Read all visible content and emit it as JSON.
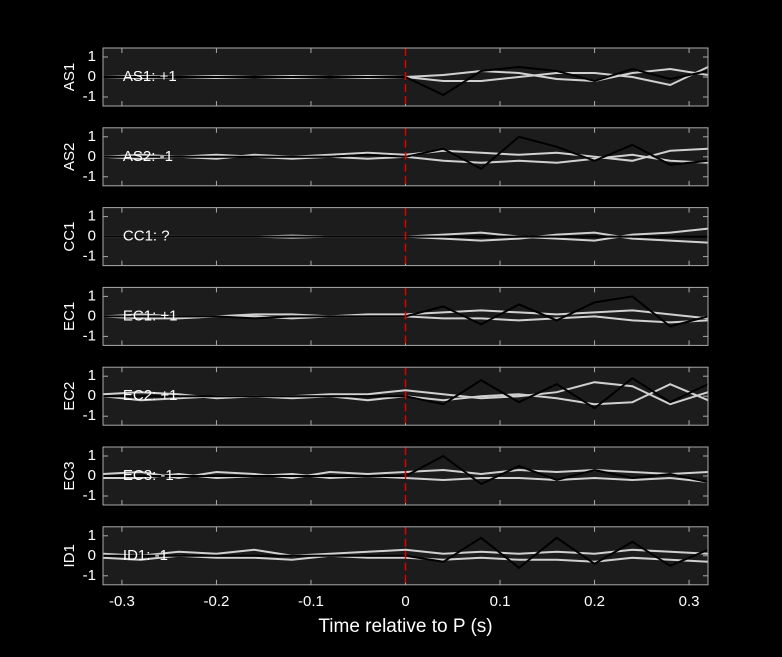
{
  "chart_data": [
    {
      "type": "line",
      "ylabel": "AS1",
      "annotation": "AS1: +1",
      "annotation_color": "#cc0000",
      "x": [
        -0.32,
        -0.28,
        -0.24,
        -0.2,
        -0.16,
        -0.12,
        -0.08,
        -0.04,
        0,
        0.04,
        0.08,
        0.12,
        0.16,
        0.2,
        0.24,
        0.28,
        0.32
      ],
      "series": [
        {
          "color": "#d0d0d0",
          "values": [
            0,
            0.05,
            0,
            -0.05,
            0,
            0.05,
            0,
            -0.05,
            0,
            0.1,
            0.3,
            0.2,
            -0.1,
            -0.2,
            0.2,
            0.4,
            0.1
          ]
        },
        {
          "color": "#d0d0d0",
          "values": [
            0,
            -0.05,
            0,
            0.05,
            0,
            -0.05,
            0,
            0.05,
            0,
            -0.2,
            -0.2,
            0,
            0.2,
            0.2,
            0,
            -0.4,
            0.5
          ]
        },
        {
          "color": "#000000",
          "values": [
            0,
            0,
            0,
            0,
            0,
            0,
            0,
            0,
            0,
            -0.9,
            0.3,
            0.5,
            0.3,
            -0.2,
            0.4,
            -0.1,
            0.3
          ]
        }
      ],
      "xlim": [
        -0.32,
        0.32
      ],
      "xticks": [
        -0.3,
        -0.2,
        -0.1,
        0,
        0.1,
        0.2,
        0.3
      ],
      "ylim": [
        -1.45,
        1.45
      ],
      "yticks": [
        -1,
        0,
        1
      ],
      "vline": 0,
      "vline_color": "#dd0000"
    },
    {
      "type": "line",
      "ylabel": "AS2",
      "annotation": "AS2: -1",
      "annotation_color": "#1a1acc",
      "x": [
        -0.32,
        -0.28,
        -0.24,
        -0.2,
        -0.16,
        -0.12,
        -0.08,
        -0.04,
        0,
        0.04,
        0.08,
        0.12,
        0.16,
        0.2,
        0.24,
        0.28,
        0.32
      ],
      "series": [
        {
          "color": "#d0d0d0",
          "values": [
            0,
            0.1,
            0,
            -0.1,
            0.1,
            0,
            0.1,
            0.2,
            0.1,
            0.3,
            0.2,
            0.1,
            0.2,
            0,
            -0.2,
            0.3,
            0.4
          ]
        },
        {
          "color": "#d0d0d0",
          "values": [
            0,
            -0.1,
            0,
            0.1,
            0,
            -0.1,
            0,
            -0.1,
            0,
            -0.2,
            -0.3,
            -0.2,
            -0.3,
            -0.1,
            0.1,
            -0.2,
            -0.3
          ]
        },
        {
          "color": "#000000",
          "values": [
            0,
            0,
            0,
            0,
            0,
            0,
            0,
            0.1,
            0,
            0.4,
            -0.6,
            1,
            0.5,
            -0.2,
            0.6,
            -0.4,
            -0.2
          ]
        }
      ],
      "xlim": [
        -0.32,
        0.32
      ],
      "xticks": [
        -0.3,
        -0.2,
        -0.1,
        0,
        0.1,
        0.2,
        0.3
      ],
      "ylim": [
        -1.45,
        1.45
      ],
      "yticks": [
        -1,
        0,
        1
      ],
      "vline": 0,
      "vline_color": "#dd0000"
    },
    {
      "type": "line",
      "ylabel": "CC1",
      "annotation": "CC1: ?",
      "annotation_color": "#888888",
      "x": [
        -0.32,
        -0.28,
        -0.24,
        -0.2,
        -0.16,
        -0.12,
        -0.08,
        -0.04,
        0,
        0.04,
        0.08,
        0.12,
        0.16,
        0.2,
        0.24,
        0.28,
        0.32
      ],
      "series": [
        {
          "color": "#d0d0d0",
          "values": [
            0,
            0,
            0,
            0,
            0,
            0.05,
            0,
            0,
            0,
            0.1,
            0.2,
            0,
            -0.1,
            -0.2,
            0.1,
            0.2,
            0.4
          ]
        },
        {
          "color": "#d0d0d0",
          "values": [
            0,
            0,
            0,
            0,
            0,
            -0.05,
            0,
            0,
            0,
            -0.1,
            -0.2,
            -0.1,
            0.1,
            0.2,
            -0.1,
            -0.2,
            -0.3
          ]
        },
        {
          "color": "#000000",
          "values": [
            0,
            0,
            0,
            0,
            0,
            0,
            0,
            0,
            0,
            0,
            0,
            0,
            0,
            0,
            0,
            0,
            0
          ]
        }
      ],
      "xlim": [
        -0.32,
        0.32
      ],
      "xticks": [
        -0.3,
        -0.2,
        -0.1,
        0,
        0.1,
        0.2,
        0.3
      ],
      "ylim": [
        -1.45,
        1.45
      ],
      "yticks": [
        -1,
        0,
        1
      ],
      "vline": 0,
      "vline_color": "#dd0000"
    },
    {
      "type": "line",
      "ylabel": "EC1",
      "annotation": "EC1: +1",
      "annotation_color": "#cc0000",
      "x": [
        -0.32,
        -0.28,
        -0.24,
        -0.2,
        -0.16,
        -0.12,
        -0.08,
        -0.04,
        0,
        0.04,
        0.08,
        0.12,
        0.16,
        0.2,
        0.24,
        0.28,
        0.32
      ],
      "series": [
        {
          "color": "#d0d0d0",
          "values": [
            0,
            0.1,
            0,
            0,
            0.1,
            0.1,
            0,
            0.1,
            0.1,
            0.2,
            0.3,
            0.2,
            0.1,
            0.2,
            0.3,
            0.1,
            -0.1
          ]
        },
        {
          "color": "#d0d0d0",
          "values": [
            0,
            -0.1,
            -0.1,
            0,
            0,
            -0.1,
            0,
            0,
            0,
            -0.1,
            -0.1,
            -0.2,
            -0.1,
            0,
            -0.2,
            -0.3,
            -0.2
          ]
        },
        {
          "color": "#000000",
          "values": [
            0,
            0,
            0,
            0,
            -0.1,
            0,
            0,
            0,
            0,
            0.5,
            -0.4,
            0.6,
            -0.2,
            0.7,
            1,
            -0.5,
            0
          ]
        }
      ],
      "xlim": [
        -0.32,
        0.32
      ],
      "xticks": [
        -0.3,
        -0.2,
        -0.1,
        0,
        0.1,
        0.2,
        0.3
      ],
      "ylim": [
        -1.45,
        1.45
      ],
      "yticks": [
        -1,
        0,
        1
      ],
      "vline": 0,
      "vline_color": "#dd0000"
    },
    {
      "type": "line",
      "ylabel": "EC2",
      "annotation": "EC2: +1",
      "annotation_color": "#cc0000",
      "x": [
        -0.32,
        -0.28,
        -0.24,
        -0.2,
        -0.16,
        -0.12,
        -0.08,
        -0.04,
        0,
        0.04,
        0.08,
        0.12,
        0.16,
        0.2,
        0.24,
        0.28,
        0.32
      ],
      "series": [
        {
          "color": "#d0d0d0",
          "values": [
            0.1,
            0.2,
            0.1,
            -0.1,
            0,
            0,
            0.1,
            0.1,
            0.3,
            0.1,
            -0.1,
            0,
            0.2,
            0.7,
            0.5,
            -0.4,
            0.2
          ]
        },
        {
          "color": "#d0d0d0",
          "values": [
            0,
            -0.2,
            -0.1,
            0,
            0,
            -0.1,
            0,
            -0.2,
            0,
            -0.2,
            0,
            0.1,
            -0.1,
            -0.4,
            -0.3,
            0.6,
            -0.2
          ]
        },
        {
          "color": "#000000",
          "values": [
            0,
            0,
            0,
            0,
            0,
            0,
            0,
            0,
            0,
            -0.4,
            0.8,
            -0.3,
            0.6,
            -0.6,
            0.9,
            -0.3,
            0.6
          ]
        }
      ],
      "xlim": [
        -0.32,
        0.32
      ],
      "xticks": [
        -0.3,
        -0.2,
        -0.1,
        0,
        0.1,
        0.2,
        0.3
      ],
      "ylim": [
        -1.45,
        1.45
      ],
      "yticks": [
        -1,
        0,
        1
      ],
      "vline": 0,
      "vline_color": "#dd0000"
    },
    {
      "type": "line",
      "ylabel": "EC3",
      "annotation": "EC3: -1",
      "annotation_color": "#1a1acc",
      "x": [
        -0.32,
        -0.28,
        -0.24,
        -0.2,
        -0.16,
        -0.12,
        -0.08,
        -0.04,
        0,
        0.04,
        0.08,
        0.12,
        0.16,
        0.2,
        0.24,
        0.28,
        0.32
      ],
      "series": [
        {
          "color": "#d0d0d0",
          "values": [
            0.1,
            0.2,
            -0.1,
            0.2,
            0.1,
            -0.1,
            0.2,
            0.1,
            0.2,
            0.3,
            0.1,
            0.3,
            0.2,
            0.3,
            0.2,
            0.1,
            0.2
          ]
        },
        {
          "color": "#d0d0d0",
          "values": [
            -0.1,
            -0.1,
            0.1,
            -0.1,
            0,
            0.1,
            -0.1,
            0,
            -0.1,
            -0.2,
            -0.1,
            -0.1,
            -0.2,
            -0.1,
            -0.2,
            -0.1,
            -0.3
          ]
        },
        {
          "color": "#000000",
          "values": [
            0,
            0,
            0,
            0,
            0,
            0,
            0,
            0,
            0,
            1,
            -0.4,
            0.5,
            -0.2,
            0.3,
            -0.1,
            0.1,
            -0.3
          ]
        }
      ],
      "xlim": [
        -0.32,
        0.32
      ],
      "xticks": [
        -0.3,
        -0.2,
        -0.1,
        0,
        0.1,
        0.2,
        0.3
      ],
      "ylim": [
        -1.45,
        1.45
      ],
      "yticks": [
        -1,
        0,
        1
      ],
      "vline": 0,
      "vline_color": "#dd0000"
    },
    {
      "type": "line",
      "ylabel": "ID1",
      "annotation": "ID1: -1",
      "annotation_color": "#1a1acc",
      "x": [
        -0.32,
        -0.28,
        -0.24,
        -0.2,
        -0.16,
        -0.12,
        -0.08,
        -0.04,
        0,
        0.04,
        0.08,
        0.12,
        0.16,
        0.2,
        0.24,
        0.28,
        0.32
      ],
      "series": [
        {
          "color": "#d0d0d0",
          "values": [
            0.1,
            0,
            0.2,
            0.1,
            0.3,
            0,
            0.1,
            0.2,
            0.3,
            0.1,
            0.2,
            0.1,
            0.2,
            0.1,
            0.3,
            0.2,
            0.1
          ]
        },
        {
          "color": "#d0d0d0",
          "values": [
            -0.1,
            -0.2,
            0,
            -0.1,
            -0.1,
            -0.2,
            0,
            -0.1,
            -0.1,
            -0.2,
            -0.1,
            -0.2,
            -0.2,
            -0.3,
            -0.1,
            -0.2,
            -0.3
          ]
        },
        {
          "color": "#000000",
          "values": [
            0,
            0,
            0,
            0,
            0,
            0,
            0,
            0,
            0,
            -0.3,
            0.9,
            -0.6,
            0.9,
            -0.4,
            0.7,
            -0.5,
            0.3
          ]
        }
      ],
      "xlim": [
        -0.32,
        0.32
      ],
      "xticks": [
        -0.3,
        -0.2,
        -0.1,
        0,
        0.1,
        0.2,
        0.3
      ],
      "ylim": [
        -1.45,
        1.45
      ],
      "yticks": [
        -1,
        0,
        1
      ],
      "vline": 0,
      "vline_color": "#dd0000",
      "xlabel": "Time relative to P (s)"
    }
  ]
}
